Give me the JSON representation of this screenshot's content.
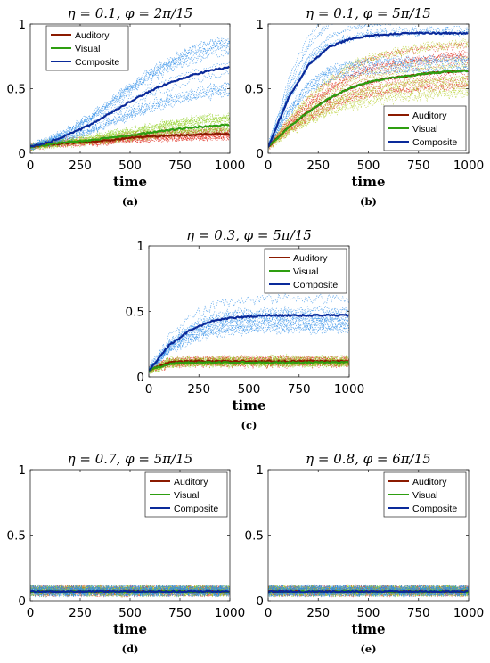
{
  "chart_data": [
    {
      "id": "a",
      "type": "line",
      "title": "η = 0.1, φ = 2π/15",
      "caption": "(a)",
      "xlabel": "time",
      "ylabel": "",
      "xlim": [
        0,
        1000
      ],
      "ylim": [
        0,
        1
      ],
      "xticks": [
        "0",
        "250",
        "500",
        "750",
        "1000"
      ],
      "yticks": [
        "0",
        "0.5",
        "1"
      ],
      "legend_position": "top-left",
      "x": [
        0,
        100,
        200,
        300,
        400,
        500,
        600,
        700,
        800,
        900,
        1000
      ],
      "series": [
        {
          "name": "Auditory",
          "color": "#8B1A00",
          "trial_color": "#E03020",
          "values": [
            0.05,
            0.07,
            0.08,
            0.09,
            0.1,
            0.12,
            0.13,
            0.14,
            0.14,
            0.15,
            0.15
          ]
        },
        {
          "name": "Visual",
          "color": "#2E9E10",
          "trial_color": "#90D020",
          "values": [
            0.05,
            0.07,
            0.09,
            0.1,
            0.12,
            0.14,
            0.16,
            0.18,
            0.2,
            0.21,
            0.22
          ]
        },
        {
          "name": "Composite",
          "color": "#0A2A9A",
          "trial_color": "#2F8FE8",
          "values": [
            0.05,
            0.09,
            0.15,
            0.22,
            0.31,
            0.4,
            0.48,
            0.55,
            0.6,
            0.64,
            0.67
          ]
        }
      ]
    },
    {
      "id": "b",
      "type": "line",
      "title": "η = 0.1, φ = 5π/15",
      "caption": "(b)",
      "xlabel": "time",
      "ylabel": "",
      "xlim": [
        0,
        1000
      ],
      "ylim": [
        0,
        1
      ],
      "xticks": [
        "0",
        "250",
        "500",
        "750",
        "1000"
      ],
      "yticks": [
        "0",
        "0.5",
        "1"
      ],
      "legend_position": "bottom-right",
      "x": [
        0,
        100,
        200,
        300,
        400,
        500,
        600,
        700,
        800,
        900,
        1000
      ],
      "series": [
        {
          "name": "Auditory",
          "color": "#8B1A00",
          "trial_color": "#E03020",
          "values": [
            0.05,
            0.2,
            0.32,
            0.42,
            0.5,
            0.55,
            0.58,
            0.6,
            0.62,
            0.63,
            0.64
          ]
        },
        {
          "name": "Visual",
          "color": "#2E9E10",
          "trial_color": "#B8D030",
          "values": [
            0.05,
            0.2,
            0.32,
            0.42,
            0.5,
            0.55,
            0.58,
            0.6,
            0.62,
            0.63,
            0.64
          ]
        },
        {
          "name": "Composite",
          "color": "#0A2A9A",
          "trial_color": "#2F8FE8",
          "values": [
            0.05,
            0.42,
            0.68,
            0.82,
            0.88,
            0.91,
            0.92,
            0.93,
            0.93,
            0.93,
            0.93
          ]
        }
      ]
    },
    {
      "id": "c",
      "type": "line",
      "title": "η = 0.3, φ = 5π/15",
      "caption": "(c)",
      "xlabel": "time",
      "ylabel": "",
      "xlim": [
        0,
        1000
      ],
      "ylim": [
        0,
        1
      ],
      "xticks": [
        "0",
        "250",
        "500",
        "750",
        "1000"
      ],
      "yticks": [
        "0",
        "0.5",
        "1"
      ],
      "legend_position": "top-right",
      "x": [
        0,
        100,
        200,
        300,
        400,
        500,
        600,
        700,
        800,
        900,
        1000
      ],
      "series": [
        {
          "name": "Auditory",
          "color": "#8B1A00",
          "trial_color": "#E03020",
          "values": [
            0.05,
            0.11,
            0.12,
            0.12,
            0.12,
            0.12,
            0.12,
            0.12,
            0.12,
            0.12,
            0.12
          ]
        },
        {
          "name": "Visual",
          "color": "#2E9E10",
          "trial_color": "#90D020",
          "values": [
            0.05,
            0.1,
            0.11,
            0.11,
            0.11,
            0.11,
            0.11,
            0.11,
            0.11,
            0.11,
            0.11
          ]
        },
        {
          "name": "Composite",
          "color": "#0A2A9A",
          "trial_color": "#2F8FE8",
          "values": [
            0.05,
            0.24,
            0.35,
            0.42,
            0.45,
            0.46,
            0.47,
            0.47,
            0.47,
            0.47,
            0.47
          ]
        }
      ]
    },
    {
      "id": "d",
      "type": "line",
      "title": "η = 0.7, φ = 5π/15",
      "caption": "(d)",
      "xlabel": "time",
      "ylabel": "",
      "xlim": [
        0,
        1000
      ],
      "ylim": [
        0,
        1
      ],
      "xticks": [
        "0",
        "250",
        "500",
        "750",
        "1000"
      ],
      "yticks": [
        "0",
        "0.5",
        "1"
      ],
      "legend_position": "top-right",
      "x": [
        0,
        100,
        200,
        300,
        400,
        500,
        600,
        700,
        800,
        900,
        1000
      ],
      "series": [
        {
          "name": "Auditory",
          "color": "#8B1A00",
          "trial_color": "#E03020",
          "values": [
            0.07,
            0.07,
            0.07,
            0.07,
            0.07,
            0.07,
            0.07,
            0.07,
            0.07,
            0.07,
            0.07
          ]
        },
        {
          "name": "Visual",
          "color": "#2E9E10",
          "trial_color": "#90D020",
          "values": [
            0.07,
            0.07,
            0.07,
            0.07,
            0.07,
            0.07,
            0.07,
            0.07,
            0.07,
            0.07,
            0.07
          ]
        },
        {
          "name": "Composite",
          "color": "#0A2A9A",
          "trial_color": "#2F8FE8",
          "values": [
            0.07,
            0.07,
            0.07,
            0.07,
            0.07,
            0.07,
            0.07,
            0.07,
            0.07,
            0.07,
            0.07
          ]
        }
      ]
    },
    {
      "id": "e",
      "type": "line",
      "title": "η = 0.8, φ = 6π/15",
      "caption": "(e)",
      "xlabel": "time",
      "ylabel": "",
      "xlim": [
        0,
        1000
      ],
      "ylim": [
        0,
        1
      ],
      "xticks": [
        "0",
        "250",
        "500",
        "750",
        "1000"
      ],
      "yticks": [
        "0",
        "0.5",
        "1"
      ],
      "legend_position": "top-right",
      "x": [
        0,
        100,
        200,
        300,
        400,
        500,
        600,
        700,
        800,
        900,
        1000
      ],
      "series": [
        {
          "name": "Auditory",
          "color": "#8B1A00",
          "trial_color": "#E03020",
          "values": [
            0.07,
            0.07,
            0.07,
            0.07,
            0.07,
            0.07,
            0.07,
            0.07,
            0.07,
            0.07,
            0.07
          ]
        },
        {
          "name": "Visual",
          "color": "#2E9E10",
          "trial_color": "#90D020",
          "values": [
            0.07,
            0.07,
            0.07,
            0.07,
            0.07,
            0.07,
            0.07,
            0.07,
            0.07,
            0.07,
            0.07
          ]
        },
        {
          "name": "Composite",
          "color": "#0A2A9A",
          "trial_color": "#2F8FE8",
          "values": [
            0.07,
            0.07,
            0.07,
            0.07,
            0.07,
            0.07,
            0.07,
            0.07,
            0.07,
            0.07,
            0.07
          ]
        }
      ]
    }
  ]
}
